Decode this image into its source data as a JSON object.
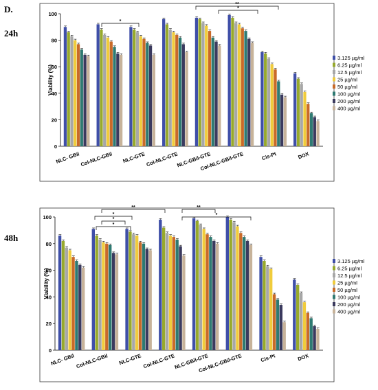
{
  "figure": {
    "panel_letter": "D."
  },
  "colors": [
    "#3f4fa8",
    "#97a92c",
    "#a7a7a7",
    "#f0cc3c",
    "#c96a28",
    "#2e7a72",
    "#3b3a5e",
    "#c7b39a"
  ],
  "chart_data": [
    {
      "type": "bar",
      "time_label": "24h",
      "ylabel": "Viability (%)",
      "ylim": [
        0,
        100
      ],
      "yticks": [
        "0",
        "20",
        "40",
        "60",
        "80",
        "100"
      ],
      "categories": [
        "NLC- GBil",
        "Col-NLC-GBil",
        "NLC-GTE",
        "Col-NLC-GTE",
        "NLC-GBil-GTE",
        "Col-NLC-GBil-GTE",
        "Cis-Pt",
        "DOX"
      ],
      "series": [
        {
          "name": "3.125 µg/ml",
          "values": [
            90,
            92,
            90,
            96,
            97,
            99,
            71,
            55
          ]
        },
        {
          "name": "6.25 µg/ml",
          "values": [
            86,
            88,
            88,
            92,
            96,
            97,
            70,
            51
          ]
        },
        {
          "name": "12.5 µg/ml",
          "values": [
            83,
            84,
            86,
            88,
            93,
            93,
            66,
            47
          ]
        },
        {
          "name": "25 µg/ml",
          "values": [
            80,
            82,
            83,
            86,
            91,
            92,
            62,
            41
          ]
        },
        {
          "name": "50 µg/ml",
          "values": [
            77,
            79,
            81,
            84,
            87,
            89,
            58,
            32
          ]
        },
        {
          "name": "100 µg/ml",
          "values": [
            73,
            75,
            78,
            82,
            82,
            87,
            49,
            25
          ]
        },
        {
          "name": "200 µg/ml",
          "values": [
            69,
            70,
            76,
            77,
            79,
            81,
            39,
            22
          ]
        },
        {
          "name": "400 µg/ml",
          "values": [
            68,
            69,
            69,
            71,
            76,
            78,
            37,
            19
          ]
        }
      ],
      "annotations": [
        "*",
        "*",
        "**"
      ],
      "legend_position": "right"
    },
    {
      "type": "bar",
      "time_label": "48h",
      "ylabel": "Viability (%)",
      "ylim": [
        0,
        100
      ],
      "yticks": [
        "0",
        "20",
        "40",
        "60",
        "80",
        "100"
      ],
      "categories": [
        "NLC- GBil",
        "Col-NLC-GBil",
        "NLC-GTE",
        "Col-NLC-GTE",
        "NLC-GBil-GTE",
        "Col-NLC-GBil-GTE",
        "Cis-Pt",
        "DOX"
      ],
      "series": [
        {
          "name": "3.125 µg/ml",
          "values": [
            86,
            91,
            91,
            98,
            99,
            100,
            70,
            53
          ]
        },
        {
          "name": "6.25 µg/ml",
          "values": [
            82,
            86,
            89,
            92,
            97,
            98,
            67,
            49
          ]
        },
        {
          "name": "12.5 µg/ml",
          "values": [
            77,
            83,
            87,
            88,
            94,
            96,
            63,
            43
          ]
        },
        {
          "name": "25 µg/ml",
          "values": [
            75,
            81,
            86,
            86,
            91,
            93,
            61,
            36
          ]
        },
        {
          "name": "50 µg/ml",
          "values": [
            70,
            80,
            81,
            85,
            87,
            88,
            42,
            28
          ]
        },
        {
          "name": "100 µg/ml",
          "values": [
            67,
            79,
            80,
            83,
            85,
            85,
            38,
            24
          ]
        },
        {
          "name": "200 µg/ml",
          "values": [
            64,
            73,
            76,
            78,
            82,
            82,
            34,
            18
          ]
        },
        {
          "name": "400 µg/ml",
          "values": [
            62,
            72,
            75,
            71,
            80,
            79,
            21,
            16
          ]
        }
      ],
      "annotations": [
        "**",
        "*",
        "*",
        "*",
        "**",
        "*"
      ],
      "legend_position": "right"
    }
  ]
}
